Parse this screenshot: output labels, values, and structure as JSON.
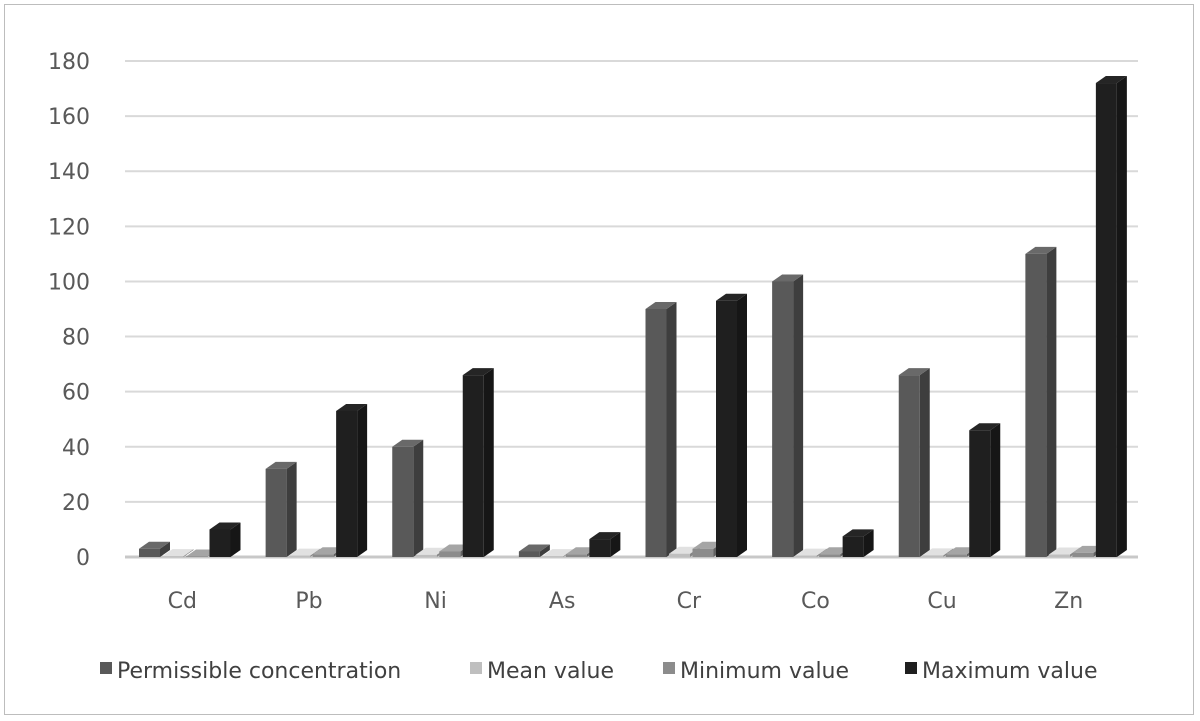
{
  "chart_data": {
    "type": "bar",
    "title": "",
    "xlabel": "",
    "ylabel": "",
    "categories": [
      "Cd",
      "Pb",
      "Ni",
      "As",
      "Cr",
      "Co",
      "Cu",
      "Zn"
    ],
    "ylim": [
      0,
      180
    ],
    "yticks": [
      0,
      20,
      40,
      60,
      80,
      100,
      120,
      140,
      160,
      180
    ],
    "grid": true,
    "legend_position": "bottom",
    "series": [
      {
        "name": "Permissible concentration",
        "color": "#595959",
        "values": [
          3,
          32,
          40,
          2,
          90,
          100,
          66,
          110
        ]
      },
      {
        "name": "Mean value",
        "color": "#bfbfbf",
        "values": [
          0.3,
          0.5,
          0.8,
          0.3,
          1.2,
          0.5,
          0.6,
          0.9
        ]
      },
      {
        "name": "Minimum value",
        "color": "#8c8c8c",
        "values": [
          0.2,
          1,
          2,
          1,
          3,
          1,
          1,
          1.5
        ]
      },
      {
        "name": "Maximum value",
        "color": "#1f1f1f",
        "values": [
          10,
          53,
          66,
          6.5,
          93,
          7.5,
          46,
          172
        ]
      }
    ]
  }
}
